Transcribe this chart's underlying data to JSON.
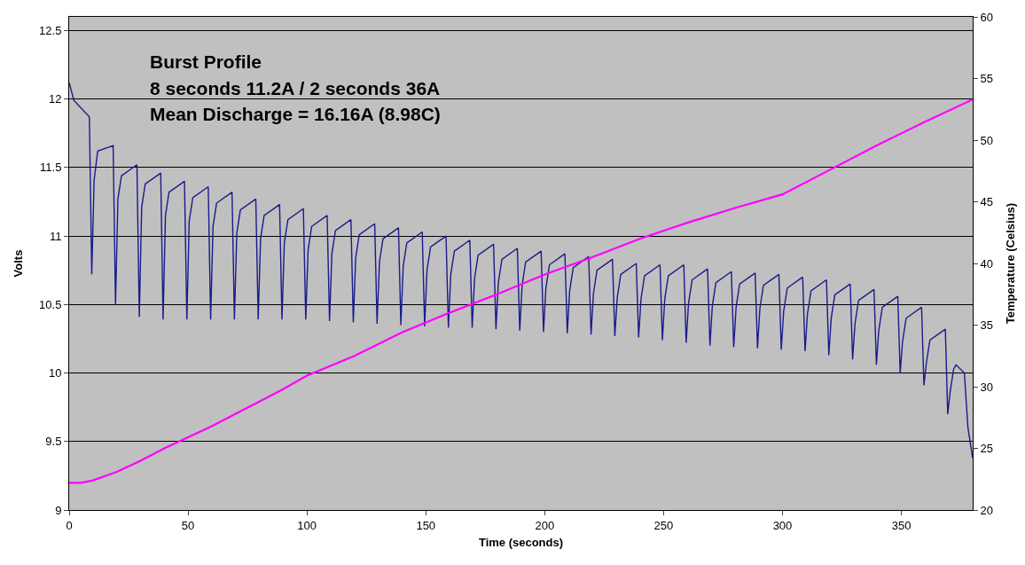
{
  "chart_data": {
    "type": "line",
    "title": "Burst Profile",
    "annotations": [
      "8 seconds 11.2A / 2 seconds 36A",
      "Mean Discharge = 16.16A (8.98C)"
    ],
    "xlabel": "Time (seconds)",
    "ylabel": "Volts",
    "y2label": "Temperature (Celsius)",
    "xlim": [
      0,
      380
    ],
    "xticks": [
      0,
      50,
      100,
      150,
      200,
      250,
      300,
      350
    ],
    "ylim": [
      9,
      12.6
    ],
    "yticks": [
      9,
      9.5,
      10,
      10.5,
      11,
      11.5,
      12,
      12.5
    ],
    "y2lim": [
      20,
      60
    ],
    "y2ticks": [
      20,
      25,
      30,
      35,
      40,
      45,
      50,
      55,
      60
    ],
    "grid": "y",
    "marker": "none",
    "line_style": "solid",
    "series": [
      {
        "color": "#1a1a8c",
        "x": [
          0,
          2,
          8.5,
          9.5,
          10.5,
          12,
          18.5,
          19.5,
          20.5,
          22,
          28.5,
          29.5,
          30.5,
          32,
          38.5,
          39.5,
          40.5,
          42,
          48.5,
          49.5,
          50.5,
          52,
          58.5,
          59.5,
          60.5,
          62,
          68.5,
          69.5,
          70.5,
          72,
          78.5,
          79.5,
          80.5,
          82,
          88.5,
          89.5,
          90.5,
          92,
          98.5,
          99.5,
          100.5,
          102,
          108.5,
          109.5,
          110.5,
          112,
          118.5,
          119.5,
          120.5,
          122,
          128.5,
          129.5,
          130.5,
          132,
          138.5,
          139.5,
          140.5,
          142,
          148.5,
          149.5,
          150.5,
          152,
          158.5,
          159.5,
          160.5,
          162,
          168.5,
          169.5,
          170.5,
          172,
          178.5,
          179.5,
          180.5,
          182,
          188.5,
          189.5,
          190.5,
          192,
          198.5,
          199.5,
          200.5,
          202,
          208.5,
          209.5,
          210.5,
          212,
          218.5,
          219.5,
          220.5,
          222,
          228.5,
          229.5,
          230.5,
          232,
          238.5,
          239.5,
          240.5,
          242,
          248.5,
          249.5,
          250.5,
          252,
          258.5,
          259.5,
          260.5,
          262,
          268.5,
          269.5,
          270.5,
          272,
          278.5,
          279.5,
          280.5,
          282,
          288.5,
          289.5,
          290.5,
          292,
          298.5,
          299.5,
          300.5,
          302,
          308.5,
          309.5,
          310.5,
          312,
          318.5,
          319.5,
          320.5,
          322,
          328.5,
          329.5,
          330.5,
          332,
          338.5,
          339.5,
          340.5,
          342,
          348.5,
          349.5,
          350.5,
          352,
          358.5,
          359.5,
          360.5,
          362,
          368.5,
          369.5,
          370.5,
          372,
          373,
          376.5,
          378,
          380
        ],
        "values": [
          12.12,
          11.99,
          11.87,
          10.72,
          11.41,
          11.62,
          11.66,
          10.5,
          11.27,
          11.44,
          11.52,
          10.41,
          11.21,
          11.38,
          11.46,
          10.39,
          11.15,
          11.32,
          11.4,
          10.39,
          11.11,
          11.28,
          11.36,
          10.39,
          11.07,
          11.24,
          11.32,
          10.39,
          11.02,
          11.19,
          11.27,
          10.39,
          10.98,
          11.15,
          11.23,
          10.39,
          10.95,
          11.12,
          11.2,
          10.39,
          10.9,
          11.07,
          11.15,
          10.38,
          10.87,
          11.04,
          11.12,
          10.37,
          10.84,
          11.01,
          11.09,
          10.36,
          10.81,
          10.98,
          11.06,
          10.35,
          10.78,
          10.95,
          11.03,
          10.34,
          10.75,
          10.92,
          11.0,
          10.33,
          10.72,
          10.89,
          10.97,
          10.33,
          10.69,
          10.86,
          10.94,
          10.32,
          10.66,
          10.83,
          10.91,
          10.31,
          10.64,
          10.81,
          10.89,
          10.3,
          10.62,
          10.79,
          10.87,
          10.29,
          10.6,
          10.77,
          10.85,
          10.28,
          10.58,
          10.75,
          10.83,
          10.27,
          10.55,
          10.72,
          10.8,
          10.26,
          10.54,
          10.71,
          10.79,
          10.24,
          10.54,
          10.71,
          10.79,
          10.22,
          10.51,
          10.68,
          10.76,
          10.2,
          10.49,
          10.66,
          10.74,
          10.19,
          10.48,
          10.65,
          10.73,
          10.18,
          10.47,
          10.64,
          10.72,
          10.17,
          10.45,
          10.62,
          10.7,
          10.16,
          10.43,
          10.6,
          10.68,
          10.13,
          10.4,
          10.57,
          10.65,
          10.1,
          10.36,
          10.53,
          10.61,
          10.06,
          10.31,
          10.48,
          10.56,
          10.0,
          10.23,
          10.4,
          10.48,
          9.91,
          10.07,
          10.24,
          10.32,
          9.7,
          9.86,
          10.03,
          10.06,
          10.0,
          9.6,
          9.38
        ]
      },
      {
        "color": "#ff00ff",
        "axis": "y2",
        "x": [
          0,
          5,
          10,
          20,
          30,
          40,
          50,
          60,
          70,
          80,
          90,
          100,
          120,
          140,
          160,
          180,
          200,
          220,
          240,
          260,
          280,
          300,
          320,
          340,
          360,
          380
        ],
        "values": [
          22.2,
          22.2,
          22.4,
          23.1,
          24.0,
          25.0,
          25.9,
          26.8,
          27.8,
          28.8,
          29.8,
          30.9,
          32.5,
          34.4,
          36.0,
          37.5,
          39.1,
          40.5,
          42.0,
          43.3,
          44.5,
          45.6,
          47.6,
          49.6,
          51.5,
          53.3
        ]
      }
    ]
  }
}
